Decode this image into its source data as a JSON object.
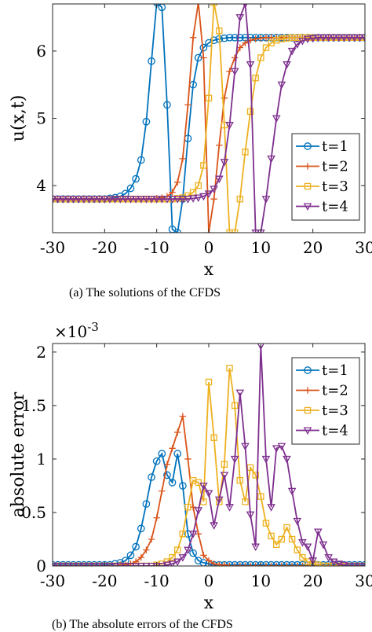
{
  "chart_data": [
    {
      "type": "line",
      "xlabel": "x",
      "ylabel": "u(x,t)",
      "caption": "(a)  The solutions of the CFDS",
      "xlim": [
        -30,
        30
      ],
      "ylim": [
        3.3,
        6.7
      ],
      "xticks": [
        -30,
        -20,
        -10,
        0,
        10,
        20,
        30
      ],
      "yticks": [
        4,
        5,
        6
      ],
      "xticklabels": [
        "-30",
        "-20",
        "-10",
        "0",
        "10",
        "20",
        "30"
      ],
      "yticklabels": [
        "4",
        "5",
        "6"
      ],
      "legend_position": "right",
      "series": [
        {
          "name": "t=1",
          "color": "#0072BD",
          "marker": "circle",
          "x": [
            -30,
            -29,
            -28,
            -27,
            -26,
            -25,
            -24,
            -23,
            -22,
            -21,
            -20,
            -19,
            -18,
            -17,
            -16,
            -15,
            -14,
            -13,
            -12,
            -11,
            -10,
            -9,
            -8,
            -7,
            -6,
            -5,
            -4,
            -3,
            -2,
            -1,
            0,
            1,
            2,
            3,
            4,
            5,
            6,
            7,
            8,
            9,
            10,
            11,
            12,
            13,
            14,
            15,
            16,
            17,
            18,
            19,
            20,
            21,
            22,
            23,
            24,
            25,
            26,
            27,
            28,
            29,
            30
          ],
          "y": [
            3.8,
            3.8,
            3.8,
            3.8,
            3.8,
            3.8,
            3.8,
            3.8,
            3.8,
            3.8,
            3.8,
            3.81,
            3.82,
            3.84,
            3.88,
            3.96,
            4.1,
            4.38,
            4.95,
            5.85,
            6.72,
            6.65,
            5.2,
            3.35,
            3.3,
            3.8,
            4.7,
            5.5,
            5.9,
            6.05,
            6.12,
            6.16,
            6.18,
            6.19,
            6.2,
            6.2,
            6.2,
            6.2,
            6.2,
            6.2,
            6.2,
            6.2,
            6.2,
            6.2,
            6.2,
            6.2,
            6.2,
            6.2,
            6.2,
            6.2,
            6.2,
            6.2,
            6.2,
            6.2,
            6.2,
            6.2,
            6.2,
            6.2,
            6.2,
            6.2,
            6.2
          ]
        },
        {
          "name": "t=2",
          "color": "#D95319",
          "marker": "plus",
          "x": [
            -30,
            -29,
            -28,
            -27,
            -26,
            -25,
            -24,
            -23,
            -22,
            -21,
            -20,
            -19,
            -18,
            -17,
            -16,
            -15,
            -14,
            -13,
            -12,
            -11,
            -10,
            -9,
            -8,
            -7,
            -6,
            -5,
            -4,
            -3,
            -2,
            -1,
            0,
            1,
            2,
            3,
            4,
            5,
            6,
            7,
            8,
            9,
            10,
            11,
            12,
            13,
            14,
            15,
            16,
            17,
            18,
            19,
            20,
            21,
            22,
            23,
            24,
            25,
            26,
            27,
            28,
            29,
            30
          ],
          "y": [
            3.8,
            3.8,
            3.8,
            3.8,
            3.8,
            3.8,
            3.8,
            3.8,
            3.8,
            3.8,
            3.8,
            3.8,
            3.8,
            3.8,
            3.8,
            3.8,
            3.8,
            3.8,
            3.8,
            3.8,
            3.81,
            3.82,
            3.84,
            3.9,
            4.05,
            4.4,
            5.2,
            6.2,
            6.72,
            5.9,
            3.3,
            3.8,
            4.6,
            5.3,
            5.7,
            5.9,
            6.05,
            6.12,
            6.16,
            6.18,
            6.19,
            6.2,
            6.2,
            6.2,
            6.2,
            6.2,
            6.2,
            6.2,
            6.2,
            6.2,
            6.2,
            6.2,
            6.2,
            6.2,
            6.2,
            6.2,
            6.2,
            6.2,
            6.2,
            6.2,
            6.2
          ]
        },
        {
          "name": "t=3",
          "color": "#EDB120",
          "marker": "square",
          "x": [
            -30,
            -29,
            -28,
            -27,
            -26,
            -25,
            -24,
            -23,
            -22,
            -21,
            -20,
            -19,
            -18,
            -17,
            -16,
            -15,
            -14,
            -13,
            -12,
            -11,
            -10,
            -9,
            -8,
            -7,
            -6,
            -5,
            -4,
            -3,
            -2,
            -1,
            0,
            1,
            2,
            3,
            4,
            5,
            6,
            7,
            8,
            9,
            10,
            11,
            12,
            13,
            14,
            15,
            16,
            17,
            18,
            19,
            20,
            21,
            22,
            23,
            24,
            25,
            26,
            27,
            28,
            29,
            30
          ],
          "y": [
            3.8,
            3.8,
            3.8,
            3.8,
            3.8,
            3.8,
            3.8,
            3.8,
            3.8,
            3.8,
            3.8,
            3.8,
            3.8,
            3.8,
            3.8,
            3.8,
            3.8,
            3.8,
            3.8,
            3.8,
            3.8,
            3.8,
            3.8,
            3.8,
            3.81,
            3.82,
            3.85,
            3.9,
            4.0,
            4.3,
            5.3,
            6.72,
            6.3,
            4.9,
            3.3,
            3.3,
            3.8,
            4.5,
            5.1,
            5.6,
            5.9,
            6.05,
            6.12,
            6.16,
            6.18,
            6.19,
            6.2,
            6.2,
            6.2,
            6.2,
            6.2,
            6.2,
            6.2,
            6.2,
            6.2,
            6.2,
            6.2,
            6.2,
            6.2,
            6.2,
            6.2
          ]
        },
        {
          "name": "t=4",
          "color": "#7E2F8E",
          "marker": "triangle-down",
          "x": [
            -30,
            -29,
            -28,
            -27,
            -26,
            -25,
            -24,
            -23,
            -22,
            -21,
            -20,
            -19,
            -18,
            -17,
            -16,
            -15,
            -14,
            -13,
            -12,
            -11,
            -10,
            -9,
            -8,
            -7,
            -6,
            -5,
            -4,
            -3,
            -2,
            -1,
            0,
            1,
            2,
            3,
            4,
            5,
            6,
            7,
            8,
            9,
            10,
            11,
            12,
            13,
            14,
            15,
            16,
            17,
            18,
            19,
            20,
            21,
            22,
            23,
            24,
            25,
            26,
            27,
            28,
            29,
            30
          ],
          "y": [
            3.8,
            3.8,
            3.8,
            3.8,
            3.8,
            3.8,
            3.8,
            3.8,
            3.8,
            3.8,
            3.8,
            3.8,
            3.8,
            3.8,
            3.8,
            3.8,
            3.8,
            3.8,
            3.8,
            3.8,
            3.8,
            3.8,
            3.8,
            3.8,
            3.8,
            3.8,
            3.8,
            3.81,
            3.82,
            3.84,
            3.88,
            3.95,
            4.1,
            4.35,
            4.9,
            5.7,
            6.5,
            6.7,
            5.8,
            3.3,
            3.3,
            3.8,
            4.4,
            5.0,
            5.5,
            5.8,
            6.0,
            6.1,
            6.15,
            6.18,
            6.19,
            6.2,
            6.2,
            6.2,
            6.2,
            6.2,
            6.2,
            6.2,
            6.2,
            6.2,
            6.2
          ]
        }
      ]
    },
    {
      "type": "line",
      "xlabel": "x",
      "ylabel": "absolute error",
      "scale_label": "×10",
      "scale_exponent": "-3",
      "caption": "(b)  The absolute errors of the CFDS",
      "xlim": [
        -30,
        30
      ],
      "ylim": [
        0,
        2.08
      ],
      "xticks": [
        -30,
        -20,
        -10,
        0,
        10,
        20,
        30
      ],
      "yticks": [
        0,
        0.5,
        1,
        1.5,
        2
      ],
      "xticklabels": [
        "-30",
        "-20",
        "-10",
        "0",
        "10",
        "20",
        "30"
      ],
      "yticklabels": [
        "0",
        "0.5",
        "1",
        "1.5",
        "2"
      ],
      "legend_position": "top-right",
      "series": [
        {
          "name": "t=1",
          "color": "#0072BD",
          "marker": "circle",
          "x": [
            -30,
            -29,
            -28,
            -27,
            -26,
            -25,
            -24,
            -23,
            -22,
            -21,
            -20,
            -19,
            -18,
            -17,
            -16,
            -15,
            -14,
            -13,
            -12,
            -11,
            -10,
            -9,
            -8,
            -7,
            -6,
            -5,
            -4,
            -3,
            -2,
            -1,
            0,
            1,
            2,
            3,
            4,
            5,
            6,
            7,
            8,
            9,
            10,
            11,
            12,
            13,
            14,
            15,
            16,
            17,
            18,
            19,
            20,
            21,
            22,
            23,
            24,
            25,
            26,
            27,
            28,
            29,
            30
          ],
          "y": [
            0.01,
            0.01,
            0.01,
            0.01,
            0.01,
            0.01,
            0.01,
            0.01,
            0.01,
            0.01,
            0.01,
            0.01,
            0.02,
            0.03,
            0.05,
            0.1,
            0.18,
            0.35,
            0.58,
            0.83,
            0.98,
            1.05,
            0.85,
            0.78,
            1.05,
            0.75,
            0.3,
            0.12,
            0.05,
            0.03,
            0.02,
            0.01,
            0.01,
            0.01,
            0.01,
            0.01,
            0.01,
            0.01,
            0.01,
            0.01,
            0.01,
            0.01,
            0.01,
            0.01,
            0.01,
            0.01,
            0.01,
            0.01,
            0.01,
            0.01,
            0.01,
            0.01,
            0.01,
            0.01,
            0.01,
            0.01,
            0.01,
            0.01,
            0.01,
            0.01,
            0.01
          ]
        },
        {
          "name": "t=2",
          "color": "#D95319",
          "marker": "plus",
          "x": [
            -30,
            -29,
            -28,
            -27,
            -26,
            -25,
            -24,
            -23,
            -22,
            -21,
            -20,
            -19,
            -18,
            -17,
            -16,
            -15,
            -14,
            -13,
            -12,
            -11,
            -10,
            -9,
            -8,
            -7,
            -6,
            -5,
            -4,
            -3,
            -2,
            -1,
            0,
            1,
            2,
            3,
            4,
            5,
            6,
            7,
            8,
            9,
            10,
            11,
            12,
            13,
            14,
            15,
            16,
            17,
            18,
            19,
            20,
            21,
            22,
            23,
            24,
            25,
            26,
            27,
            28,
            29,
            30
          ],
          "y": [
            0.0,
            0.0,
            0.0,
            0.0,
            0.0,
            0.0,
            0.0,
            0.0,
            0.0,
            0.0,
            0.0,
            0.0,
            0.0,
            0.01,
            0.01,
            0.02,
            0.04,
            0.08,
            0.15,
            0.25,
            0.45,
            0.7,
            0.95,
            1.1,
            1.25,
            1.4,
            1.0,
            0.55,
            0.3,
            0.1,
            0.05,
            0.02,
            0.01,
            0.01,
            0.0,
            0.0,
            0.0,
            0.0,
            0.0,
            0.0,
            0.0,
            0.0,
            0.0,
            0.0,
            0.0,
            0.0,
            0.0,
            0.0,
            0.0,
            0.0,
            0.0,
            0.0,
            0.0,
            0.0,
            0.0,
            0.0,
            0.0,
            0.0,
            0.0,
            0.0,
            0.0
          ]
        },
        {
          "name": "t=3",
          "color": "#EDB120",
          "marker": "square",
          "x": [
            -30,
            -29,
            -28,
            -27,
            -26,
            -25,
            -24,
            -23,
            -22,
            -21,
            -20,
            -19,
            -18,
            -17,
            -16,
            -15,
            -14,
            -13,
            -12,
            -11,
            -10,
            -9,
            -8,
            -7,
            -6,
            -5,
            -4,
            -3,
            -2,
            -1,
            0,
            1,
            2,
            3,
            4,
            5,
            6,
            7,
            8,
            9,
            10,
            11,
            12,
            13,
            14,
            15,
            16,
            17,
            18,
            19,
            20,
            21,
            22,
            23,
            24,
            25,
            26,
            27,
            28,
            29,
            30
          ],
          "y": [
            0.0,
            0.0,
            0.0,
            0.0,
            0.0,
            0.0,
            0.0,
            0.0,
            0.0,
            0.0,
            0.0,
            0.0,
            0.0,
            0.0,
            0.0,
            0.0,
            0.0,
            0.0,
            0.0,
            0.0,
            0.01,
            0.02,
            0.04,
            0.08,
            0.15,
            0.3,
            0.55,
            0.8,
            0.78,
            0.6,
            1.72,
            1.2,
            0.6,
            0.95,
            1.85,
            1.5,
            0.8,
            0.6,
            0.92,
            0.85,
            0.65,
            0.4,
            0.28,
            0.2,
            0.25,
            0.36,
            0.25,
            0.15,
            0.08,
            0.04,
            0.02,
            0.01,
            0.0,
            0.0,
            0.0,
            0.0,
            0.0,
            0.0,
            0.0,
            0.0,
            0.0
          ]
        },
        {
          "name": "t=4",
          "color": "#7E2F8E",
          "marker": "triangle-down",
          "x": [
            -30,
            -29,
            -28,
            -27,
            -26,
            -25,
            -24,
            -23,
            -22,
            -21,
            -20,
            -19,
            -18,
            -17,
            -16,
            -15,
            -14,
            -13,
            -12,
            -11,
            -10,
            -9,
            -8,
            -7,
            -6,
            -5,
            -4,
            -3,
            -2,
            -1,
            0,
            1,
            2,
            3,
            4,
            5,
            6,
            7,
            8,
            9,
            10,
            11,
            12,
            13,
            14,
            15,
            16,
            17,
            18,
            19,
            20,
            21,
            22,
            23,
            24,
            25,
            26,
            27,
            28,
            29,
            30
          ],
          "y": [
            0.0,
            0.0,
            0.0,
            0.0,
            0.0,
            0.0,
            0.0,
            0.0,
            0.0,
            0.0,
            0.0,
            0.0,
            0.0,
            0.0,
            0.0,
            0.0,
            0.0,
            0.0,
            0.0,
            0.0,
            0.0,
            0.0,
            0.01,
            0.02,
            0.04,
            0.08,
            0.15,
            0.3,
            0.52,
            0.75,
            0.68,
            0.38,
            0.62,
            0.85,
            0.55,
            1.0,
            1.62,
            1.12,
            0.48,
            0.18,
            2.06,
            1.0,
            0.55,
            1.1,
            1.12,
            1.0,
            0.7,
            0.42,
            0.22,
            0.18,
            0.05,
            0.32,
            0.2,
            0.08,
            0.04,
            0.02,
            0.01,
            0.0,
            0.0,
            0.0,
            0.0
          ]
        }
      ]
    }
  ]
}
